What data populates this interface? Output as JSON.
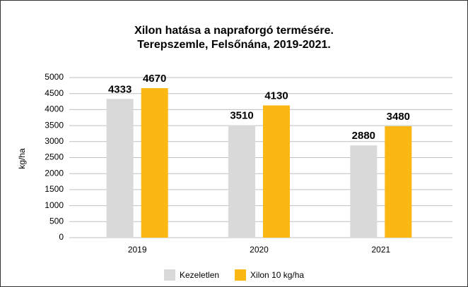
{
  "chart_data": {
    "type": "bar",
    "title": "Xilon hatása a napraforgó termésére.",
    "subtitle": "Terepszemle, Felsőnána, 2019-2021.",
    "y_label": "kg/ha",
    "categories": [
      "2019",
      "2020",
      "2021"
    ],
    "series": [
      {
        "name": "Kezeletlen",
        "color": "#d9d9d9",
        "values": [
          4333,
          3510,
          2880
        ]
      },
      {
        "name": "Xilon 10 kg/ha",
        "color": "#fbb713",
        "values": [
          4670,
          4130,
          3480
        ]
      }
    ],
    "ylim": [
      0,
      5000
    ],
    "yticks": [
      0,
      500,
      1000,
      1500,
      2000,
      2500,
      3000,
      3500,
      4000,
      4500,
      5000
    ],
    "grid": true,
    "legend": "bottom"
  }
}
